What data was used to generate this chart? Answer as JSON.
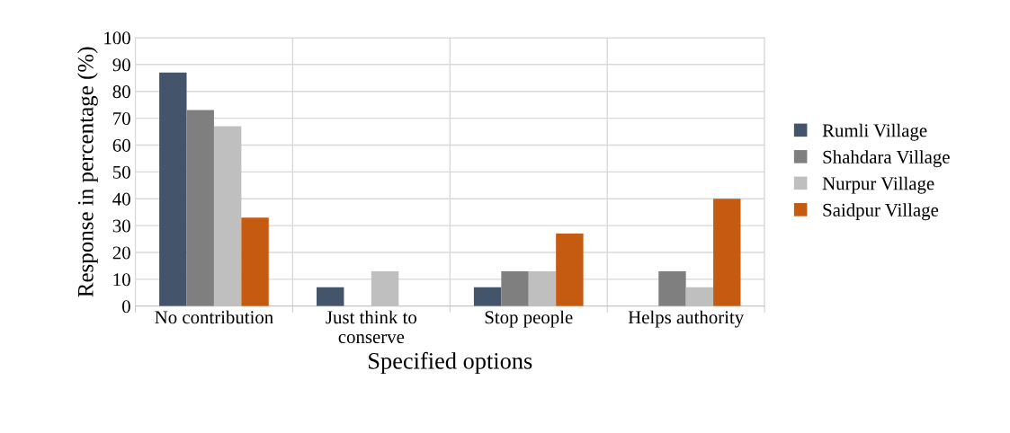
{
  "chart_data": {
    "type": "bar",
    "xlabel": "Specified options",
    "ylabel": "Response in percentage (%)",
    "categories": [
      "No contribution",
      "Just think to conserve",
      "Stop people",
      "Helps authority"
    ],
    "series": [
      {
        "name": "Rumli Village",
        "color": "#44546a",
        "values": [
          87,
          7,
          7,
          0
        ]
      },
      {
        "name": "Shahdara Village",
        "color": "#7f7f7f",
        "values": [
          73,
          0,
          13,
          13
        ]
      },
      {
        "name": "Nurpur Village",
        "color": "#bfbfbf",
        "values": [
          67,
          13,
          13,
          7
        ]
      },
      {
        "name": "Saidpur Village",
        "color": "#c55a11",
        "values": [
          33,
          0,
          27,
          40
        ]
      }
    ],
    "ylim": [
      0,
      100
    ],
    "yticks": [
      0,
      10,
      20,
      30,
      40,
      50,
      60,
      70,
      80,
      90,
      100
    ],
    "grid": true,
    "legend": "right"
  }
}
